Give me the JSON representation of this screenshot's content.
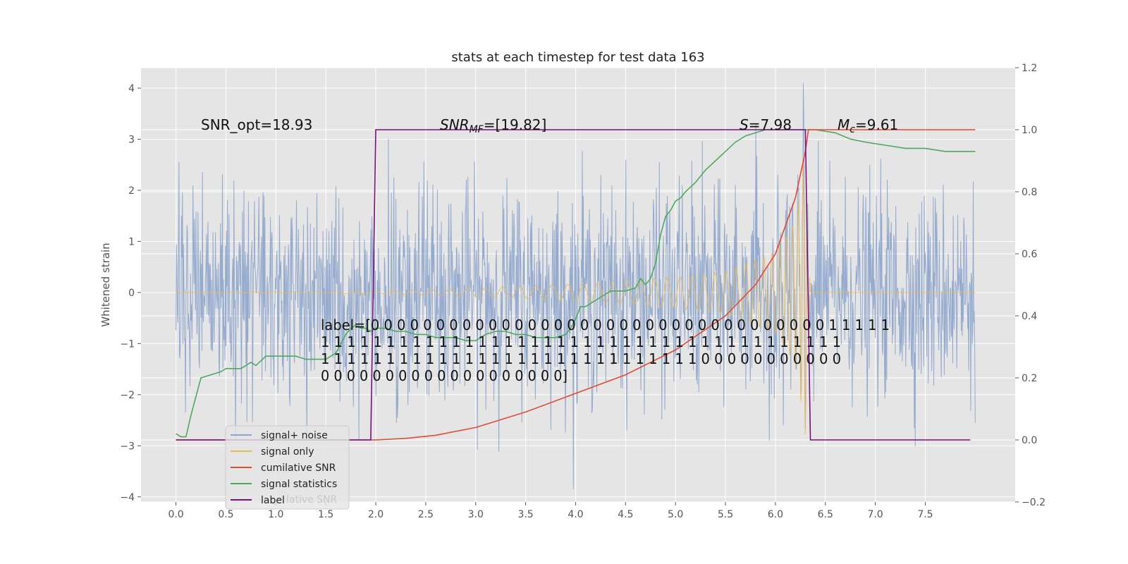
{
  "chart_data": {
    "type": "line",
    "title": "stats at each timestep for test data 163",
    "ylabel": "Whitened strain",
    "xlim": [
      -0.35,
      8.4
    ],
    "ylim": [
      -4.1,
      4.4
    ],
    "ylim_right": [
      -0.2,
      1.2
    ],
    "grid": true,
    "legend_position": "lower-left",
    "xticks": [
      "0.0",
      "0.5",
      "1.0",
      "1.5",
      "2.0",
      "2.5",
      "3.0",
      "3.5",
      "4.0",
      "4.5",
      "5.0",
      "5.5",
      "6.0",
      "6.5",
      "7.0",
      "7.5"
    ],
    "yticks": [
      "4",
      "3",
      "2",
      "1",
      "0",
      "−1",
      "−2",
      "−3",
      "−4"
    ],
    "yticks_right": [
      "1.2",
      "1.0",
      "0.8",
      "0.6",
      "0.4",
      "0.2",
      "0.0",
      "−0.2"
    ],
    "colors": {
      "signal_noise": "#8fa6cc",
      "signal_only": "#e8b85a",
      "cumulative_snr": "#e24a33",
      "signal_statistics": "#4fa860",
      "label": "#7b0f7e",
      "background": "#e5e5e5",
      "grid": "#ffffff"
    },
    "series": [
      {
        "name": "signal+ noise",
        "type": "line",
        "x_range": [
          0.0,
          8.0
        ],
        "noise_std": 1.0,
        "axis": "left"
      },
      {
        "name": "signal only",
        "type": "line",
        "x_range": [
          0.0,
          6.35
        ],
        "axis": "left",
        "envelope_x": [
          0.0,
          2.0,
          3.0,
          4.0,
          5.0,
          5.5,
          6.0,
          6.2,
          6.3,
          6.35
        ],
        "envelope_y": [
          0.0,
          0.02,
          0.08,
          0.17,
          0.3,
          0.42,
          0.8,
          1.4,
          2.8,
          0.0
        ]
      },
      {
        "name": "cumilative SNR",
        "type": "line",
        "axis": "right",
        "x": [
          0.0,
          2.0,
          2.3,
          2.6,
          3.0,
          3.5,
          4.0,
          4.5,
          5.0,
          5.5,
          5.8,
          6.0,
          6.2,
          6.3,
          6.33,
          8.0
        ],
        "y": [
          0.0,
          0.0,
          0.005,
          0.015,
          0.04,
          0.09,
          0.15,
          0.21,
          0.29,
          0.4,
          0.5,
          0.6,
          0.78,
          0.93,
          1.0,
          1.0
        ]
      },
      {
        "name": "signal statistics",
        "type": "line",
        "axis": "right",
        "x": [
          0.0,
          0.05,
          0.1,
          0.15,
          0.25,
          0.35,
          0.45,
          0.5,
          0.55,
          0.65,
          0.7,
          0.75,
          0.8,
          0.9,
          0.95,
          1.0,
          1.1,
          1.2,
          1.3,
          1.4,
          1.5,
          1.6,
          1.7,
          1.75,
          1.8,
          1.85,
          1.9,
          1.95,
          2.0,
          2.1,
          2.2,
          2.3,
          2.4,
          2.5,
          2.6,
          2.7,
          2.8,
          2.9,
          3.0,
          3.1,
          3.2,
          3.3,
          3.4,
          3.5,
          3.6,
          3.7,
          3.8,
          3.9,
          3.95,
          4.0,
          4.05,
          4.1,
          4.2,
          4.3,
          4.35,
          4.4,
          4.5,
          4.6,
          4.65,
          4.7,
          4.75,
          4.8,
          4.85,
          4.9,
          4.95,
          5.0,
          5.05,
          5.1,
          5.2,
          5.3,
          5.4,
          5.5,
          5.6,
          5.7,
          5.8,
          5.9,
          6.0,
          6.1,
          6.2,
          6.3,
          6.4,
          6.6,
          6.75,
          6.9,
          7.1,
          7.3,
          7.5,
          7.7,
          7.8,
          7.9,
          8.0
        ],
        "y": [
          0.02,
          0.01,
          0.01,
          0.08,
          0.2,
          0.21,
          0.22,
          0.23,
          0.23,
          0.23,
          0.24,
          0.25,
          0.24,
          0.27,
          0.27,
          0.27,
          0.27,
          0.27,
          0.26,
          0.26,
          0.26,
          0.28,
          0.34,
          0.36,
          0.37,
          0.36,
          0.36,
          0.35,
          0.36,
          0.36,
          0.35,
          0.35,
          0.34,
          0.34,
          0.33,
          0.33,
          0.33,
          0.32,
          0.32,
          0.34,
          0.35,
          0.35,
          0.34,
          0.34,
          0.33,
          0.33,
          0.33,
          0.34,
          0.36,
          0.39,
          0.43,
          0.43,
          0.45,
          0.47,
          0.48,
          0.48,
          0.48,
          0.49,
          0.52,
          0.5,
          0.52,
          0.57,
          0.66,
          0.72,
          0.74,
          0.77,
          0.78,
          0.8,
          0.83,
          0.87,
          0.9,
          0.93,
          0.96,
          0.98,
          0.99,
          1.0,
          1.0,
          1.0,
          1.0,
          1.0,
          1.0,
          0.99,
          0.97,
          0.96,
          0.95,
          0.94,
          0.94,
          0.93,
          0.93,
          0.93,
          0.93
        ]
      },
      {
        "name": "label",
        "type": "step",
        "axis": "right",
        "x": [
          0.0,
          1.95,
          2.0,
          6.3,
          6.35,
          7.95
        ],
        "y": [
          0.0,
          0.0,
          1.0,
          1.0,
          0.0,
          0.0
        ]
      }
    ],
    "annotations": [
      {
        "text": "SNR_opt=18.93",
        "italic_prefix": ""
      },
      {
        "text": "=[19.82]",
        "italic_prefix": "SNR",
        "subscript": "MF"
      },
      {
        "text": "=7.98",
        "italic_prefix": "S"
      },
      {
        "text": "=9.61",
        "italic_prefix": "M",
        "subscript": "c"
      }
    ],
    "label_text_lines": [
      "label=[0 0 0 0 0 0 0 0 0 0 0 0 0 0 0 0 0 0 0 0 0 0 0 0 0 0 0 0 0 0 0 0 0 0 0 1 1 1 1 1",
      " 1 1 1 1 1 1 1 1 1 1 1 1 1 1 1 1 1 1 1 1 1 1 1 1 1 1 1 1 1 1 1 1 1 1 1 1 1 1 1 1",
      " 1 1 1 1 1 1 1 1 1 1 1 1 1 1 1 1 1 1 1 1 1 1 1 1 1 1 1 1 1 0 0 0 0 0 0 0 0 0 0 0",
      " 0 0 0 0 0 0 0 0 0 0 0 0 0 0 0 0 0 0 0]"
    ],
    "legend": [
      "signal+ noise",
      "signal only",
      "cumilative SNR",
      "signal statistics",
      "label"
    ],
    "legend_ghost_text": "lative SNR"
  }
}
